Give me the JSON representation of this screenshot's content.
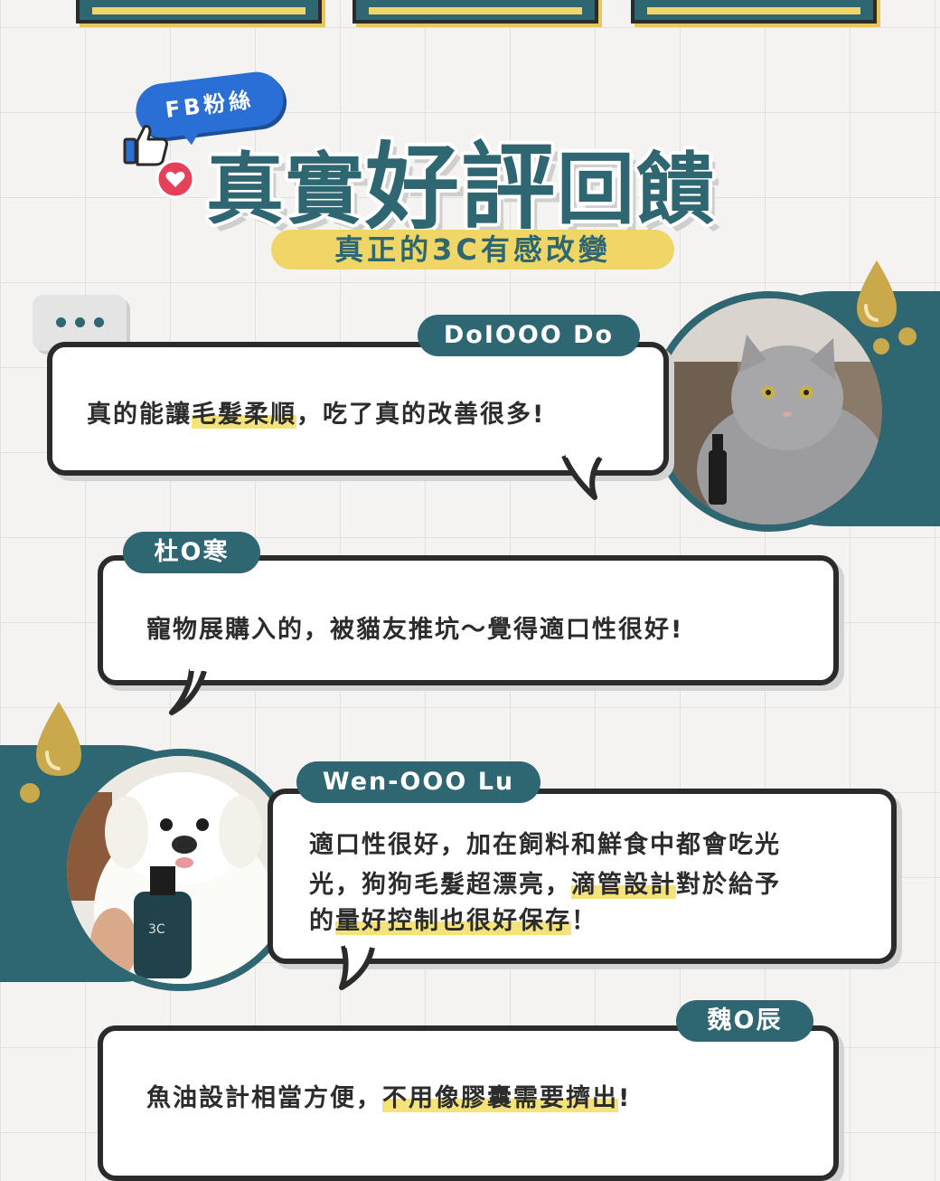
{
  "header": {
    "badge": "FB粉絲",
    "title_part1": "真實",
    "title_part2": "好評",
    "title_part3": "回饋",
    "subtitle": "真正的3C有感改變"
  },
  "reviews": [
    {
      "name": "DoIOOO Do",
      "text_before": "真的能讓",
      "text_highlight": "毛髮柔順",
      "text_after": "，吃了真的改善很多!"
    },
    {
      "name": "杜O寒",
      "text": "寵物展購入的，被貓友推坑～覺得適口性很好!"
    },
    {
      "name": "Wen-OOO Lu",
      "line1": "適口性很好，加在飼料和鮮食中都會吃光",
      "line2_before": "光，狗狗毛髮超漂亮，",
      "line2_highlight": "滴管設計",
      "line2_after": "對於給予",
      "line3_before": "的",
      "line3_highlight": "量好控制也很好保存",
      "line3_after": "！"
    },
    {
      "name": "魏O辰",
      "text_before": "魚油設計相當方便，",
      "text_highlight": "不用像膠囊需要擠出",
      "text_after": "!"
    }
  ],
  "colors": {
    "teal": "#2e6672",
    "yellow": "#f0d667",
    "gold": "#c9a94b",
    "fb_blue": "#2a6fd6",
    "heart": "#e5415b"
  }
}
